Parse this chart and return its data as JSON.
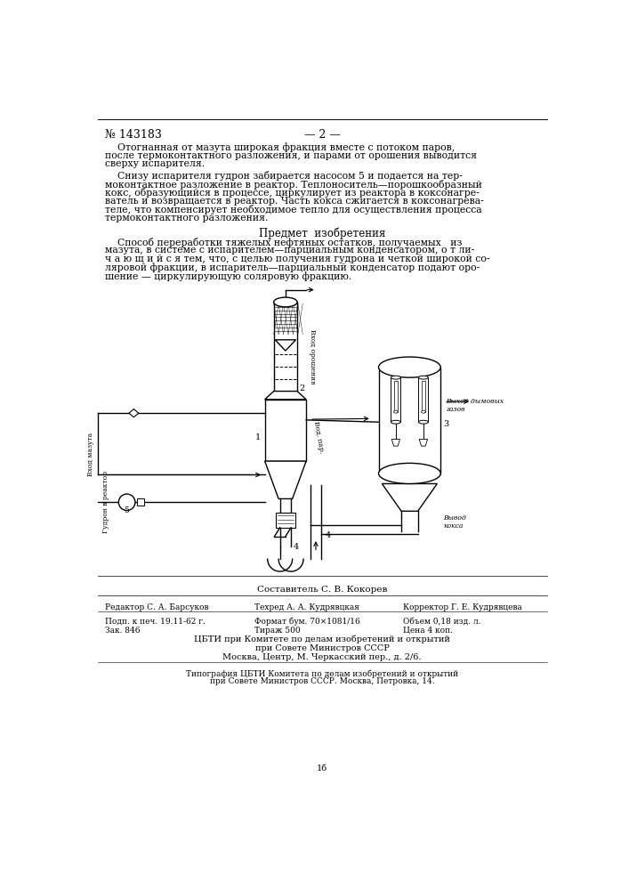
{
  "patent_number": "№ 143183",
  "page_number": "— 2 —",
  "para1_lines": [
    "    Отогнанная от мазута широкая фракция вместе с потоком паров,",
    "после термоконтактного разложения, и парами от орошения выводится",
    "сверху испарителя."
  ],
  "para2_lines": [
    "    Снизу испарителя гудрон забирается насосом 5 и подается на тер-",
    "моконтактное разложение в реактор. Теплоноситель—порошкообразный",
    "кокс, образующийся в процессе, циркулирует из реактора в коксонагре-",
    "ватель и возвращается в реактор. Часть кокса сжигается в коксонагрева-",
    "теле, что компенсирует необходимое тепло для осуществления процесса",
    "термоконтактного разложения."
  ],
  "predmet": "Предмет  изобретения",
  "claim_lines": [
    "    Способ переработки тяжелых нефтяных остатков, получаемых   из",
    "мазута, в системе с испарителем—парциальным конденсатором, о т ли-",
    "ч а ю щ и й с я тем, что, с целью получения гудрона и четкой широкой со-",
    "ляровой фракции, в испаритель—парциальный конденсатор подают оро-",
    "шение — циркулирующую соляровую фракцию."
  ],
  "sostavitel": "Составитель С. В. Кокорев"
}
